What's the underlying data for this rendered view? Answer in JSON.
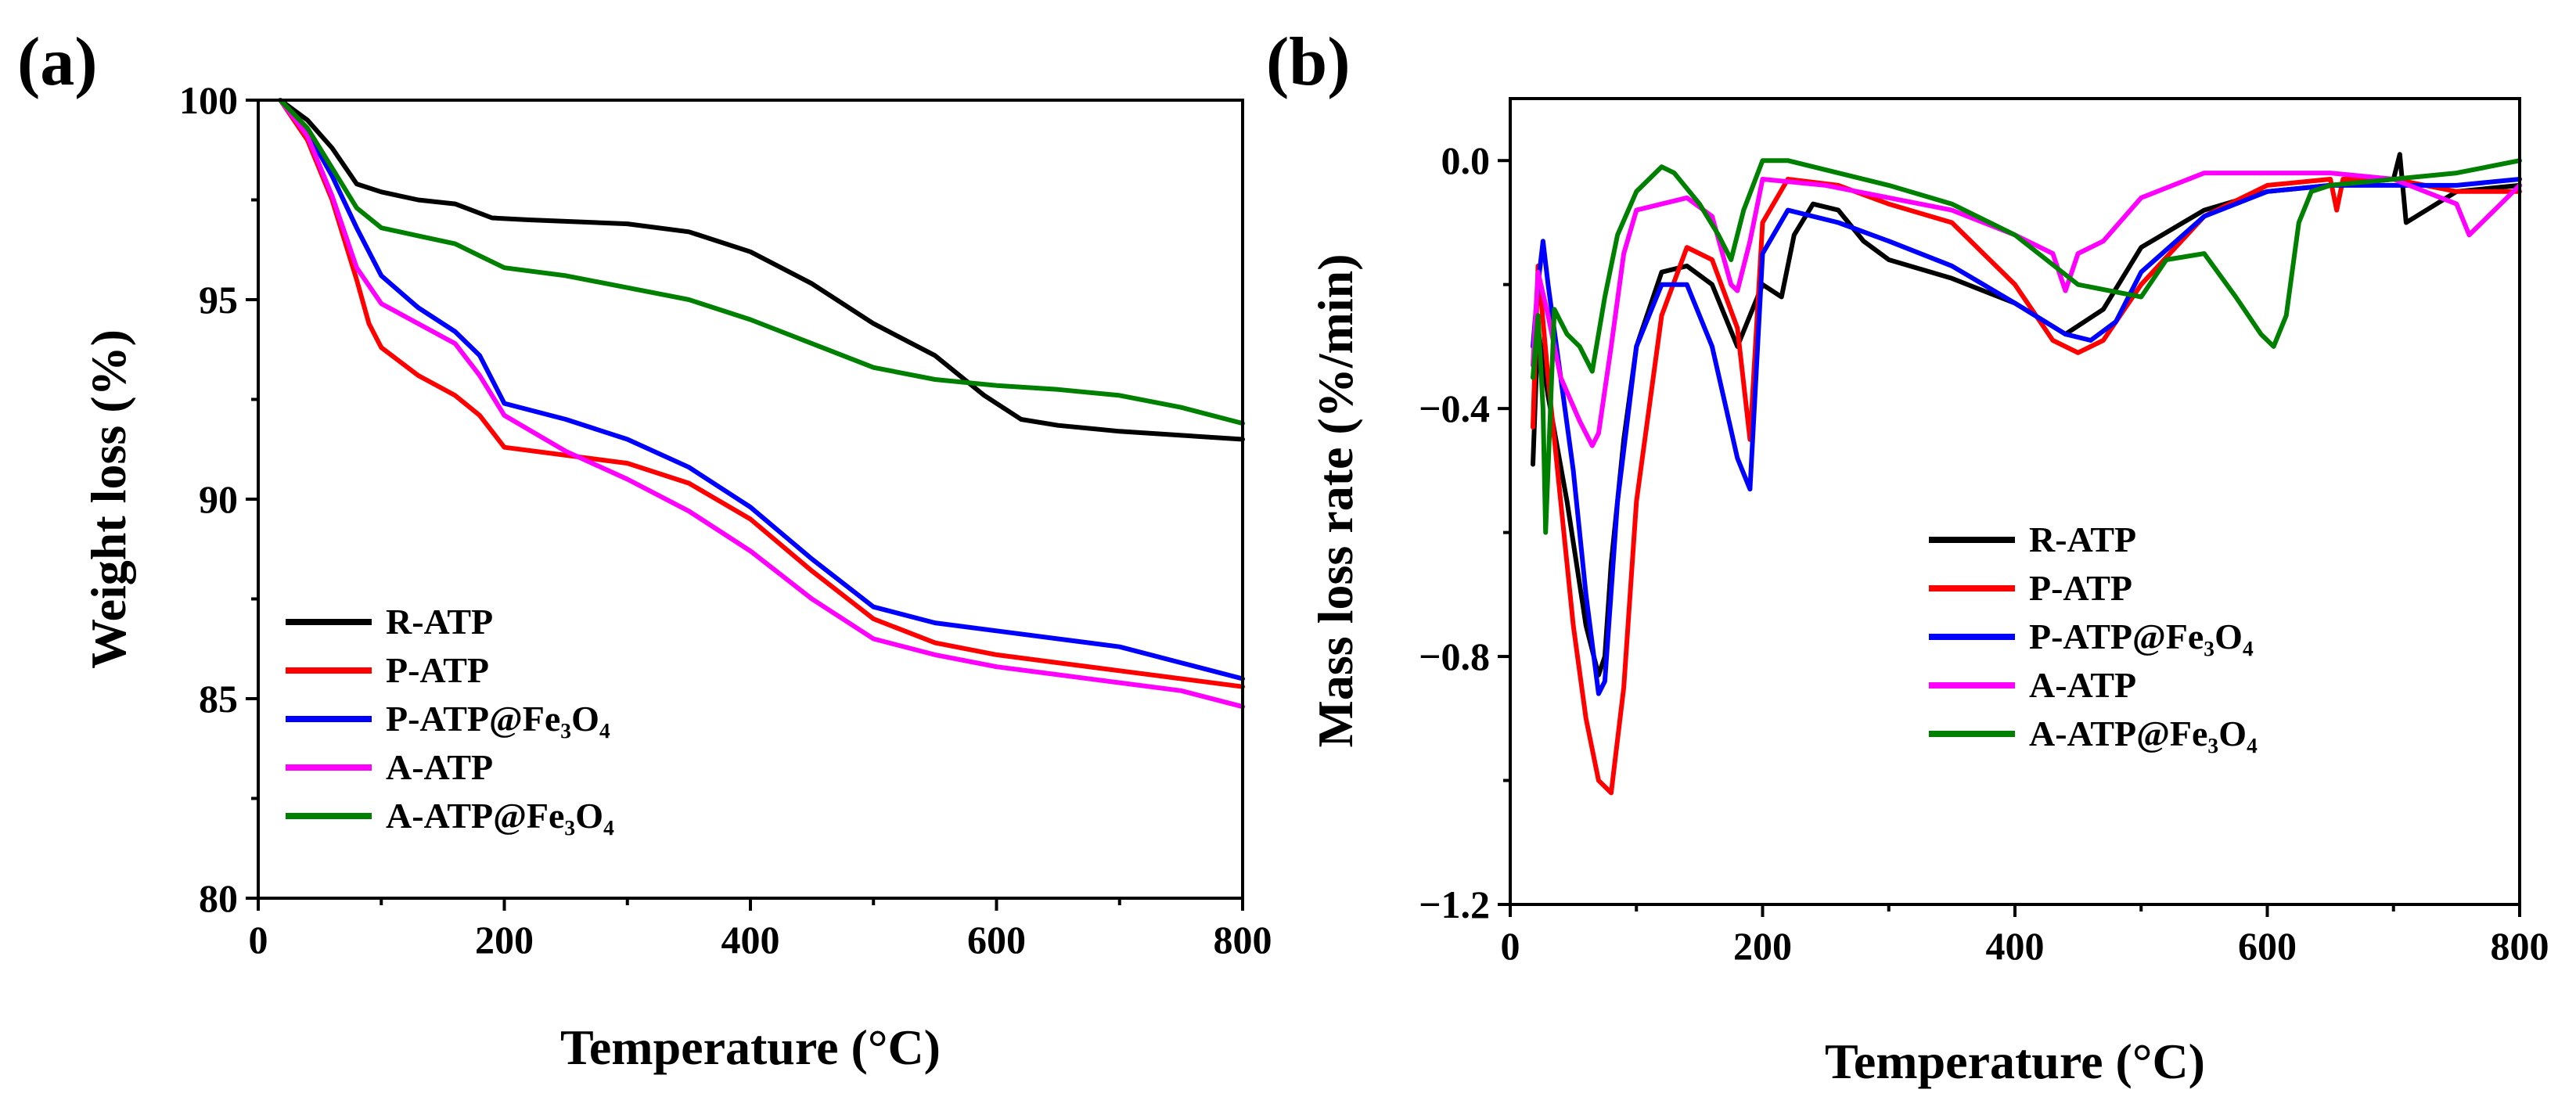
{
  "chart_data": [
    {
      "type": "line",
      "panel_label": "(a)",
      "xlabel": "Temperature (°C)",
      "ylabel": "Weight loss (%)",
      "xlim": [
        0,
        800
      ],
      "ylim": [
        80,
        100
      ],
      "x_ticks": [
        0,
        200,
        400,
        600,
        800
      ],
      "x_tick_labels": [
        "0",
        "200",
        "400",
        "600",
        "800"
      ],
      "y_ticks": [
        80,
        85,
        90,
        95,
        100
      ],
      "y_tick_labels": [
        "80",
        "85",
        "90",
        "95",
        "100"
      ],
      "grid": false,
      "legend_position": "bottom-left",
      "series": [
        {
          "name": "R-ATP",
          "color": "#000000",
          "x": [
            18,
            40,
            60,
            80,
            100,
            130,
            160,
            190,
            220,
            300,
            350,
            400,
            450,
            500,
            550,
            590,
            620,
            650,
            700,
            750,
            800
          ],
          "y": [
            100,
            99.5,
            98.8,
            97.9,
            97.7,
            97.5,
            97.4,
            97.05,
            97.0,
            96.9,
            96.7,
            96.2,
            95.4,
            94.4,
            93.6,
            92.6,
            92.0,
            91.85,
            91.7,
            91.6,
            91.5
          ]
        },
        {
          "name": "P-ATP",
          "color": "#ff0000",
          "x": [
            18,
            40,
            60,
            80,
            90,
            100,
            130,
            160,
            180,
            200,
            250,
            300,
            350,
            400,
            450,
            500,
            550,
            600,
            650,
            700,
            750,
            800
          ],
          "y": [
            100,
            99.0,
            97.5,
            95.5,
            94.4,
            93.8,
            93.1,
            92.6,
            92.1,
            91.3,
            91.1,
            90.9,
            90.4,
            89.5,
            88.2,
            87.0,
            86.4,
            86.1,
            85.9,
            85.7,
            85.5,
            85.3
          ]
        },
        {
          "name": "P-ATP@Fe₃O₄",
          "color": "#0000ff",
          "x": [
            18,
            40,
            60,
            80,
            100,
            130,
            160,
            180,
            200,
            250,
            300,
            350,
            400,
            450,
            500,
            550,
            600,
            650,
            700,
            750,
            800
          ],
          "y": [
            100,
            99.2,
            98.1,
            96.8,
            95.6,
            94.8,
            94.2,
            93.6,
            92.4,
            92.0,
            91.5,
            90.8,
            89.8,
            88.5,
            87.3,
            86.9,
            86.7,
            86.5,
            86.3,
            85.9,
            85.5
          ]
        },
        {
          "name": "A-ATP",
          "color": "#ff00ff",
          "x": [
            18,
            40,
            60,
            80,
            100,
            130,
            160,
            180,
            200,
            250,
            300,
            350,
            400,
            450,
            500,
            550,
            600,
            650,
            700,
            750,
            800
          ],
          "y": [
            100,
            99.1,
            97.6,
            95.8,
            94.9,
            94.4,
            93.9,
            93.1,
            92.1,
            91.2,
            90.5,
            89.7,
            88.7,
            87.5,
            86.5,
            86.1,
            85.8,
            85.6,
            85.4,
            85.2,
            84.8
          ]
        },
        {
          "name": "A-ATP@Fe₃O₄",
          "color": "#008000",
          "x": [
            18,
            40,
            60,
            80,
            100,
            130,
            160,
            180,
            200,
            250,
            300,
            350,
            400,
            450,
            500,
            550,
            600,
            650,
            700,
            750,
            800
          ],
          "y": [
            100,
            99.3,
            98.3,
            97.3,
            96.8,
            96.6,
            96.4,
            96.1,
            95.8,
            95.6,
            95.3,
            95.0,
            94.5,
            93.9,
            93.3,
            93.0,
            92.85,
            92.75,
            92.6,
            92.3,
            91.9
          ]
        }
      ]
    },
    {
      "type": "line",
      "panel_label": "(b)",
      "xlabel": "Temperature (°C)",
      "ylabel": "Mass loss rate (%/min)",
      "xlim": [
        0,
        800
      ],
      "ylim": [
        -1.2,
        0.1
      ],
      "x_ticks": [
        0,
        200,
        400,
        600,
        800
      ],
      "x_tick_labels": [
        "0",
        "200",
        "400",
        "600",
        "800"
      ],
      "y_ticks": [
        -1.2,
        -0.8,
        -0.4,
        0.0
      ],
      "y_tick_labels": [
        "−1.2",
        "−0.8",
        "−0.4",
        "0.0"
      ],
      "grid": false,
      "legend_position": "center-right",
      "series": [
        {
          "name": "R-ATP",
          "color": "#000000",
          "x": [
            18,
            22,
            30,
            45,
            60,
            70,
            75,
            80,
            90,
            100,
            120,
            140,
            160,
            180,
            200,
            215,
            225,
            240,
            260,
            280,
            300,
            350,
            400,
            440,
            470,
            500,
            550,
            600,
            650,
            700,
            705,
            710,
            750,
            800
          ],
          "y": [
            -0.49,
            -0.27,
            -0.38,
            -0.55,
            -0.75,
            -0.83,
            -0.8,
            -0.65,
            -0.45,
            -0.3,
            -0.18,
            -0.17,
            -0.2,
            -0.3,
            -0.2,
            -0.22,
            -0.12,
            -0.07,
            -0.08,
            -0.13,
            -0.16,
            -0.19,
            -0.23,
            -0.28,
            -0.24,
            -0.14,
            -0.08,
            -0.05,
            -0.04,
            -0.03,
            0.01,
            -0.1,
            -0.05,
            -0.04
          ]
        },
        {
          "name": "P-ATP",
          "color": "#ff0000",
          "x": [
            18,
            22,
            30,
            40,
            50,
            60,
            70,
            80,
            90,
            100,
            120,
            140,
            160,
            180,
            190,
            200,
            220,
            260,
            300,
            350,
            400,
            430,
            450,
            470,
            500,
            550,
            600,
            650,
            655,
            660,
            700,
            750,
            800
          ],
          "y": [
            -0.43,
            -0.17,
            -0.35,
            -0.55,
            -0.75,
            -0.9,
            -1.0,
            -1.02,
            -0.85,
            -0.55,
            -0.25,
            -0.14,
            -0.16,
            -0.27,
            -0.45,
            -0.1,
            -0.03,
            -0.04,
            -0.07,
            -0.1,
            -0.2,
            -0.29,
            -0.31,
            -0.29,
            -0.2,
            -0.09,
            -0.04,
            -0.03,
            -0.08,
            -0.03,
            -0.03,
            -0.05,
            -0.05
          ]
        },
        {
          "name": "P-ATP@Fe₃O₄",
          "color": "#0000ff",
          "x": [
            18,
            22,
            26,
            30,
            40,
            50,
            60,
            70,
            75,
            85,
            100,
            120,
            140,
            160,
            180,
            190,
            200,
            220,
            260,
            300,
            350,
            400,
            440,
            460,
            480,
            500,
            550,
            600,
            650,
            700,
            750,
            800
          ],
          "y": [
            -0.3,
            -0.2,
            -0.13,
            -0.2,
            -0.35,
            -0.5,
            -0.7,
            -0.86,
            -0.84,
            -0.55,
            -0.3,
            -0.2,
            -0.2,
            -0.3,
            -0.48,
            -0.53,
            -0.15,
            -0.08,
            -0.1,
            -0.13,
            -0.17,
            -0.23,
            -0.28,
            -0.29,
            -0.26,
            -0.18,
            -0.09,
            -0.05,
            -0.04,
            -0.04,
            -0.04,
            -0.03
          ]
        },
        {
          "name": "A-ATP",
          "color": "#ff00ff",
          "x": [
            18,
            22,
            30,
            40,
            55,
            65,
            70,
            80,
            90,
            100,
            120,
            140,
            160,
            175,
            180,
            190,
            200,
            250,
            300,
            350,
            400,
            430,
            440,
            450,
            470,
            500,
            550,
            600,
            650,
            700,
            750,
            760,
            800
          ],
          "y": [
            -0.33,
            -0.18,
            -0.25,
            -0.35,
            -0.42,
            -0.46,
            -0.44,
            -0.3,
            -0.15,
            -0.08,
            -0.07,
            -0.06,
            -0.09,
            -0.2,
            -0.21,
            -0.13,
            -0.03,
            -0.04,
            -0.06,
            -0.08,
            -0.12,
            -0.15,
            -0.21,
            -0.15,
            -0.13,
            -0.06,
            -0.02,
            -0.02,
            -0.02,
            -0.03,
            -0.07,
            -0.12,
            -0.04
          ]
        },
        {
          "name": "A-ATP@Fe₃O₄",
          "color": "#008000",
          "x": [
            18,
            22,
            26,
            28,
            35,
            45,
            55,
            65,
            75,
            85,
            100,
            120,
            130,
            150,
            165,
            175,
            185,
            200,
            220,
            260,
            300,
            350,
            400,
            450,
            500,
            520,
            550,
            575,
            595,
            605,
            615,
            625,
            635,
            650,
            700,
            750,
            800
          ],
          "y": [
            -0.35,
            -0.25,
            -0.4,
            -0.6,
            -0.24,
            -0.28,
            -0.3,
            -0.34,
            -0.22,
            -0.12,
            -0.05,
            -0.01,
            -0.02,
            -0.07,
            -0.12,
            -0.16,
            -0.08,
            0.0,
            0.0,
            -0.02,
            -0.04,
            -0.07,
            -0.12,
            -0.2,
            -0.22,
            -0.16,
            -0.15,
            -0.22,
            -0.28,
            -0.3,
            -0.25,
            -0.1,
            -0.05,
            -0.04,
            -0.03,
            -0.02,
            0.0
          ]
        }
      ]
    }
  ]
}
